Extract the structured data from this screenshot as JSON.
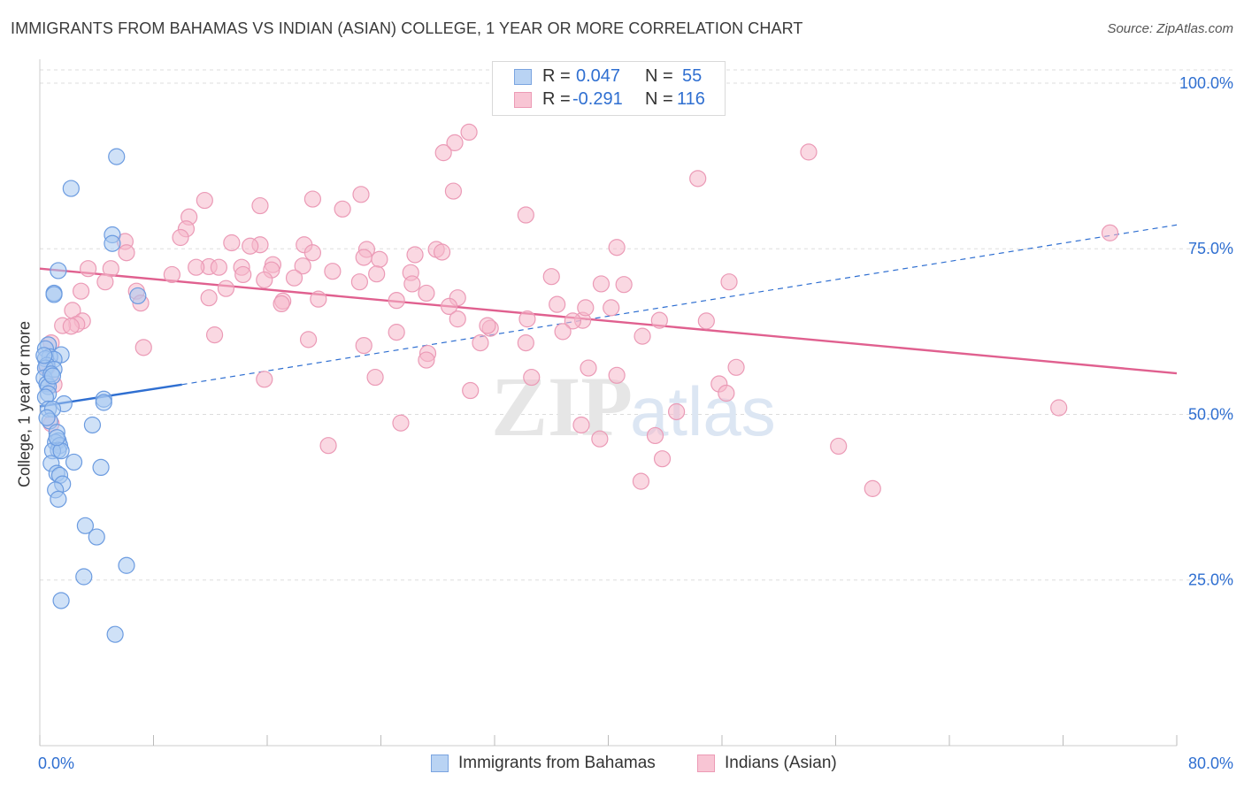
{
  "title": "IMMIGRANTS FROM BAHAMAS VS INDIAN (ASIAN) COLLEGE, 1 YEAR OR MORE CORRELATION CHART",
  "source": "Source: ZipAtlas.com",
  "colors": {
    "blue": "#2f6fd1",
    "blue_fill": "#a8c8f0",
    "pink": "#e0608f",
    "pink_fill": "#f5b8cb",
    "grid": "#dddddd",
    "axis_text": "#2f6fd1"
  },
  "legend": {
    "r_label": "R =",
    "n_label": "N =",
    "series1": {
      "r": "0.047",
      "n": "55"
    },
    "series2": {
      "r": "-0.291",
      "n": "116"
    }
  },
  "chart_data": {
    "type": "scatter",
    "title": "IMMIGRANTS FROM BAHAMAS VS INDIAN (ASIAN) COLLEGE, 1 YEAR OR MORE CORRELATION CHART",
    "xlabel": "",
    "ylabel": "College, 1 year or more",
    "xlim": [
      0,
      80
    ],
    "ylim": [
      0,
      102
    ],
    "x_tick_labels": [
      "0.0%",
      "80.0%"
    ],
    "y_ticks": [
      25,
      50,
      75,
      100
    ],
    "y_tick_labels": [
      "25.0%",
      "50.0%",
      "75.0%",
      "100.0%"
    ],
    "watermark": "ZIPatlas",
    "series": [
      {
        "name": "Immigrants from Bahamas",
        "color": "blue",
        "trend": {
          "solid": [
            [
              0,
              51.2
            ],
            [
              10,
              54.5
            ]
          ],
          "dashed": [
            [
              10,
              54.5
            ],
            [
              80,
              78.6
            ]
          ]
        },
        "points": [
          [
            5.4,
            88.9
          ],
          [
            2.2,
            84.1
          ],
          [
            5.1,
            77.1
          ],
          [
            5.1,
            75.8
          ],
          [
            1.3,
            71.7
          ],
          [
            1.0,
            68.3
          ],
          [
            1.0,
            68.1
          ],
          [
            6.9,
            67.9
          ],
          [
            0.6,
            60.5
          ],
          [
            0.4,
            59.9
          ],
          [
            1.5,
            59.0
          ],
          [
            0.7,
            58.7
          ],
          [
            0.4,
            58.4
          ],
          [
            1.0,
            58.3
          ],
          [
            0.5,
            57.4
          ],
          [
            0.4,
            57.0
          ],
          [
            1.0,
            56.8
          ],
          [
            0.3,
            55.5
          ],
          [
            0.5,
            54.6
          ],
          [
            0.6,
            54.2
          ],
          [
            0.6,
            53.1
          ],
          [
            0.4,
            52.6
          ],
          [
            4.5,
            52.3
          ],
          [
            4.5,
            51.8
          ],
          [
            1.7,
            51.6
          ],
          [
            0.6,
            50.8
          ],
          [
            0.9,
            50.8
          ],
          [
            0.7,
            49.0
          ],
          [
            3.7,
            48.4
          ],
          [
            1.2,
            47.3
          ],
          [
            1.3,
            46.0
          ],
          [
            1.1,
            45.8
          ],
          [
            1.4,
            45.3
          ],
          [
            1.3,
            44.6
          ],
          [
            0.9,
            44.5
          ],
          [
            1.5,
            44.5
          ],
          [
            2.4,
            42.8
          ],
          [
            0.8,
            42.6
          ],
          [
            4.3,
            42.0
          ],
          [
            1.2,
            41.1
          ],
          [
            1.4,
            40.8
          ],
          [
            1.6,
            39.5
          ],
          [
            1.1,
            38.6
          ],
          [
            1.3,
            37.2
          ],
          [
            3.2,
            33.2
          ],
          [
            4.0,
            31.5
          ],
          [
            6.1,
            27.2
          ],
          [
            3.1,
            25.5
          ],
          [
            1.5,
            21.9
          ],
          [
            5.3,
            16.8
          ],
          [
            0.3,
            58.9
          ],
          [
            0.8,
            56.1
          ],
          [
            1.2,
            46.5
          ],
          [
            0.5,
            49.5
          ],
          [
            0.9,
            55.8
          ]
        ]
      },
      {
        "name": "Indians (Asian)",
        "color": "pink",
        "trend": {
          "solid": [
            [
              0,
              72.0
            ],
            [
              80,
              56.2
            ]
          ]
        },
        "points": [
          [
            30.2,
            92.6
          ],
          [
            29.2,
            91.0
          ],
          [
            28.4,
            89.5
          ],
          [
            54.1,
            89.6
          ],
          [
            46.3,
            85.6
          ],
          [
            22.6,
            83.2
          ],
          [
            29.1,
            83.7
          ],
          [
            19.2,
            82.5
          ],
          [
            11.6,
            82.3
          ],
          [
            21.3,
            81.0
          ],
          [
            15.5,
            81.5
          ],
          [
            34.2,
            80.1
          ],
          [
            10.5,
            79.8
          ],
          [
            10.3,
            78.0
          ],
          [
            9.9,
            76.7
          ],
          [
            6.0,
            76.1
          ],
          [
            13.5,
            75.9
          ],
          [
            18.6,
            75.6
          ],
          [
            15.5,
            75.6
          ],
          [
            14.8,
            75.4
          ],
          [
            40.6,
            75.2
          ],
          [
            23.0,
            74.9
          ],
          [
            27.9,
            74.9
          ],
          [
            28.3,
            74.5
          ],
          [
            6.1,
            74.4
          ],
          [
            19.2,
            74.4
          ],
          [
            22.8,
            73.7
          ],
          [
            23.9,
            73.4
          ],
          [
            16.4,
            72.6
          ],
          [
            18.5,
            72.4
          ],
          [
            11.9,
            72.3
          ],
          [
            12.6,
            72.2
          ],
          [
            14.2,
            72.2
          ],
          [
            3.4,
            72.0
          ],
          [
            5.0,
            72.0
          ],
          [
            9.3,
            71.1
          ],
          [
            16.3,
            71.8
          ],
          [
            20.6,
            71.6
          ],
          [
            23.7,
            71.2
          ],
          [
            26.1,
            71.4
          ],
          [
            14.3,
            71.1
          ],
          [
            17.9,
            70.6
          ],
          [
            15.8,
            70.3
          ],
          [
            4.6,
            70.0
          ],
          [
            36.0,
            70.8
          ],
          [
            22.5,
            70.0
          ],
          [
            26.2,
            69.7
          ],
          [
            39.5,
            69.7
          ],
          [
            41.1,
            69.6
          ],
          [
            48.5,
            70.0
          ],
          [
            13.1,
            69.0
          ],
          [
            2.9,
            68.6
          ],
          [
            6.8,
            68.6
          ],
          [
            27.2,
            68.3
          ],
          [
            11.9,
            67.6
          ],
          [
            19.6,
            67.4
          ],
          [
            29.4,
            67.6
          ],
          [
            17.1,
            67.1
          ],
          [
            25.1,
            67.2
          ],
          [
            7.1,
            66.8
          ],
          [
            36.4,
            66.6
          ],
          [
            28.8,
            66.3
          ],
          [
            40.2,
            66.1
          ],
          [
            2.3,
            65.7
          ],
          [
            17.0,
            66.7
          ],
          [
            3.0,
            64.1
          ],
          [
            29.4,
            64.4
          ],
          [
            2.6,
            63.6
          ],
          [
            34.3,
            64.4
          ],
          [
            38.2,
            64.2
          ],
          [
            43.6,
            64.2
          ],
          [
            37.5,
            64.1
          ],
          [
            46.9,
            64.1
          ],
          [
            1.6,
            63.4
          ],
          [
            2.2,
            63.3
          ],
          [
            25.1,
            62.4
          ],
          [
            31.7,
            63.0
          ],
          [
            31.5,
            63.4
          ],
          [
            12.3,
            62.0
          ],
          [
            36.8,
            62.5
          ],
          [
            42.4,
            61.8
          ],
          [
            18.9,
            61.3
          ],
          [
            31.0,
            60.8
          ],
          [
            34.2,
            60.8
          ],
          [
            22.8,
            60.4
          ],
          [
            7.3,
            60.1
          ],
          [
            0.8,
            60.8
          ],
          [
            27.3,
            59.2
          ],
          [
            27.2,
            58.2
          ],
          [
            0.5,
            57.1
          ],
          [
            38.6,
            57.0
          ],
          [
            49.0,
            57.1
          ],
          [
            15.8,
            55.3
          ],
          [
            23.6,
            55.6
          ],
          [
            34.6,
            55.6
          ],
          [
            40.6,
            55.9
          ],
          [
            47.8,
            54.6
          ],
          [
            30.3,
            53.6
          ],
          [
            48.3,
            53.2
          ],
          [
            1.0,
            54.5
          ],
          [
            44.8,
            50.4
          ],
          [
            71.7,
            51.0
          ],
          [
            25.4,
            48.7
          ],
          [
            38.1,
            48.4
          ],
          [
            0.8,
            48.6
          ],
          [
            39.4,
            46.3
          ],
          [
            43.3,
            46.8
          ],
          [
            20.3,
            45.3
          ],
          [
            56.2,
            45.2
          ],
          [
            43.8,
            43.3
          ],
          [
            42.3,
            39.9
          ],
          [
            58.6,
            38.8
          ],
          [
            75.3,
            77.4
          ],
          [
            38.4,
            66.1
          ],
          [
            26.4,
            74.1
          ],
          [
            11.0,
            72.2
          ]
        ]
      }
    ]
  },
  "bottom_legend": {
    "series1": "Immigrants from Bahamas",
    "series2": "Indians (Asian)"
  }
}
